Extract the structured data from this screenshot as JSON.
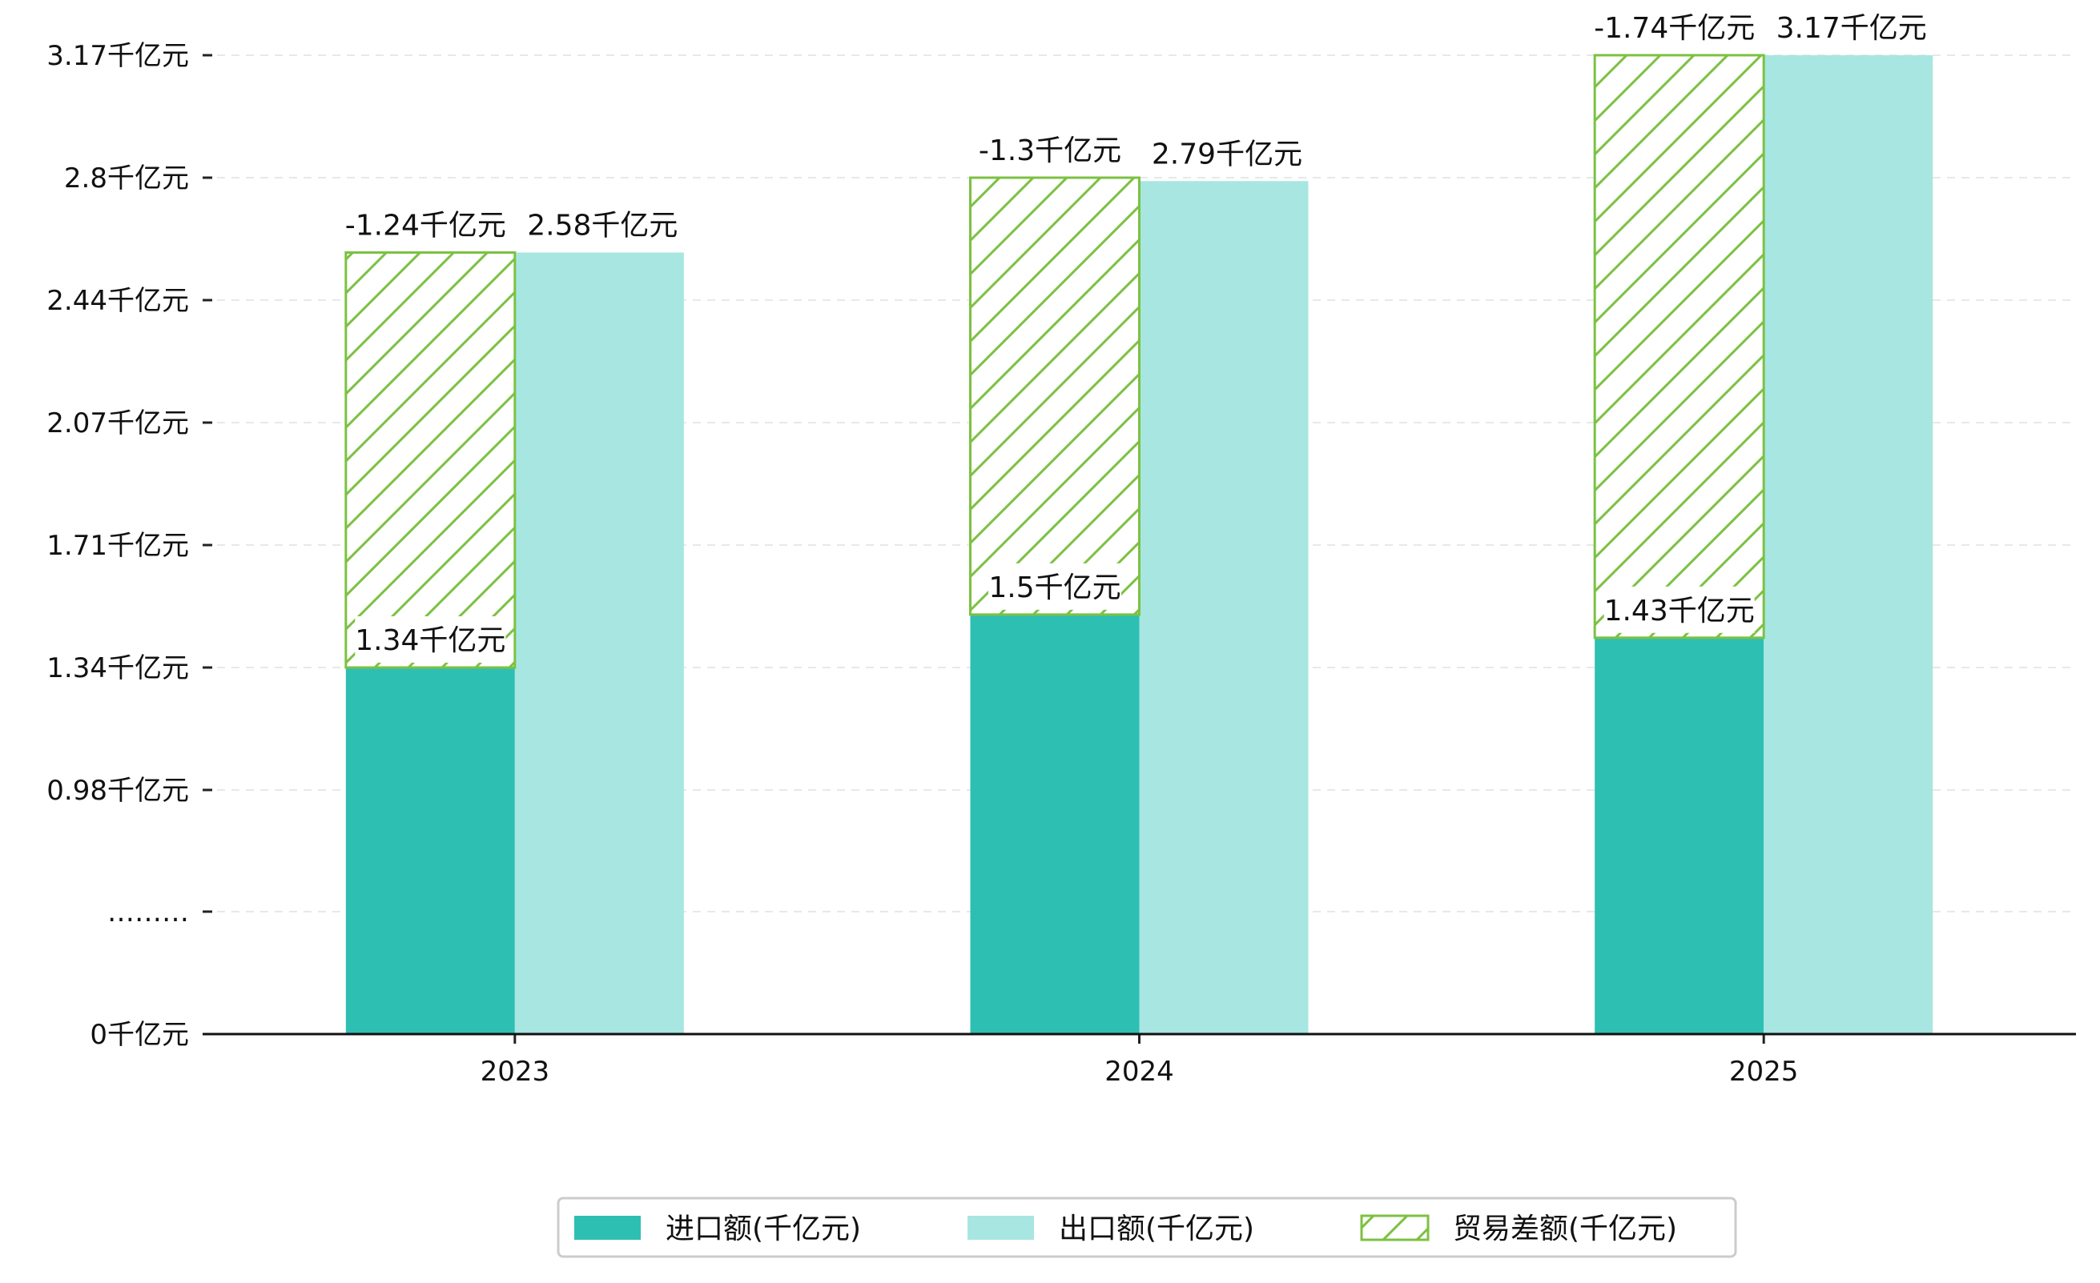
{
  "chart_data": {
    "type": "bar",
    "categories": [
      "2023",
      "2024",
      "2025"
    ],
    "series": [
      {
        "name": "进口额(千亿元)",
        "values": [
          1.34,
          1.5,
          1.43
        ],
        "labels": [
          "1.34千亿元",
          "1.5千亿元",
          "1.43千亿元"
        ],
        "color": "#2ebfb3"
      },
      {
        "name": "出口额(千亿元)",
        "values": [
          2.58,
          2.79,
          3.17
        ],
        "labels": [
          "2.58千亿元",
          "2.79千亿元",
          "3.17千亿元"
        ],
        "color": "#a8e6e1"
      },
      {
        "name": "贸易差额(千亿元)",
        "values": [
          -1.24,
          -1.3,
          -1.74
        ],
        "labels": [
          "-1.24千亿元",
          "-1.3千亿元",
          "-1.74千亿元"
        ],
        "color": "#7cc142",
        "pattern": "hatch"
      }
    ],
    "yticks": [
      {
        "value": 0,
        "label": "0千亿元"
      },
      {
        "value": 0.63,
        "label": "………"
      },
      {
        "value": 0.98,
        "label": "0.98千亿元"
      },
      {
        "value": 1.34,
        "label": "1.34千亿元"
      },
      {
        "value": 1.71,
        "label": "1.71千亿元"
      },
      {
        "value": 2.07,
        "label": "2.07千亿元"
      },
      {
        "value": 2.44,
        "label": "2.44千亿元"
      },
      {
        "value": 2.8,
        "label": "2.8千亿元"
      },
      {
        "value": 3.17,
        "label": "3.17千亿元"
      }
    ],
    "ylim": [
      0,
      3.17
    ],
    "axis_break": true,
    "grid": true,
    "legend_position": "bottom-center"
  }
}
